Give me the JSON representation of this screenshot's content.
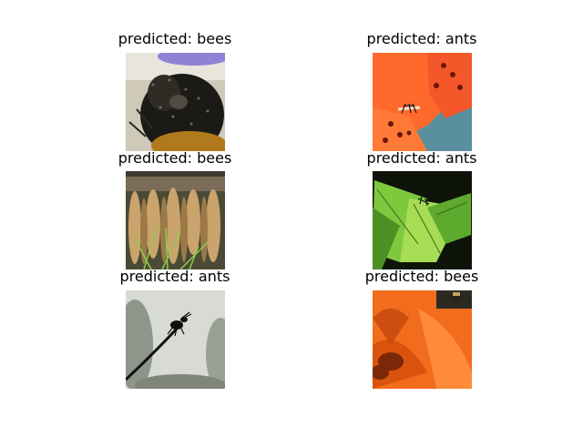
{
  "panels": [
    {
      "label": "predicted: bees",
      "image": "bumblebee-closeup-photo"
    },
    {
      "label": "predicted: ants",
      "image": "ant-on-orange-lily-photo"
    },
    {
      "label": "predicted: bees",
      "image": "hive-combs-photo"
    },
    {
      "label": "predicted: ants",
      "image": "ant-on-green-leaf-photo"
    },
    {
      "label": "predicted: ants",
      "image": "ant-silhouette-on-stem-photo"
    },
    {
      "label": "predicted: bees",
      "image": "bee-on-orange-poppy-photo"
    }
  ],
  "colors": {
    "background": "#ffffff",
    "text": "#000000"
  }
}
